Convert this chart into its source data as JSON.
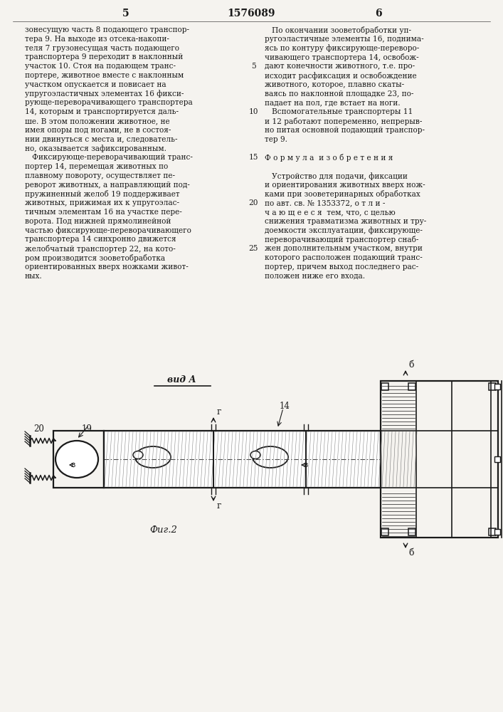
{
  "page_number_left": "5",
  "patent_number": "1576089",
  "page_number_right": "6",
  "bg_color": "#f5f3ef",
  "text_color": "#1a1a1a",
  "left_column_text": [
    "зонесущую часть 8 подающего транспор-",
    "тера 9. На выходе из отсека-накопи-",
    "теля 7 грузонесущая часть подающего",
    "транспортера 9 переходит в наклонный",
    "участок 10. Стоя на подающем транс-",
    "портере, животное вместе с наклонным",
    "участком опускается и повисает на",
    "упругоэластичных элементах 16 фикси-",
    "рующе-переворачивающего транспортера",
    "14, которым и транспортируется даль-",
    "ше. В этом положении животное, не",
    "имея опоры под ногами, не в состоя-",
    "нии двинуться с места и, следователь-",
    "но, оказывается зафиксированным.",
    "   Фиксирующе-переворачивающий транс-",
    "портер 14, перемещая животных по",
    "плавному повороту, осуществляет пе-",
    "реворот животных, а направляющий под-",
    "пружиненный желоб 19 поддерживает",
    "животных, прижимая их к упругоэлас-",
    "тичным элементам 16 на участке пере-",
    "ворота. Под нижней прямолинейной",
    "частью фиксирующе-переворачивающего",
    "транспортера 14 синхронно движется",
    "желобчатый транспортер 22, на кото-",
    "ром производится зооветобработка",
    "ориентированных вверх ножками живот-",
    "ных."
  ],
  "right_column_text": [
    "   По окончании зооветобработки уп-",
    "ругоэластичные элементы 16, поднима-",
    "ясь по контуру фиксирующе-переворо-",
    "чивающего транспортера 14, освобож-",
    "дают конечности животного, т.е. про-",
    "исходит расфиксация и освобождение",
    "животного, которое, плавно скаты-",
    "ваясь по наклонной площадке 23, по-",
    "падает на пол, где встает на ноги.",
    "   Вспомогательные транспортеры 11",
    "и 12 работают попеременно, непрерыв-",
    "но питая основной подающий транспор-",
    "тер 9.",
    "",
    "Ф о р м у л а  и з о б р е т е н и я",
    "",
    "   Устройство для подачи, фиксации",
    "и ориентирования животных вверх нож-",
    "ками при зооветеринарных обработках",
    "по авт. св. № 1353372, о т л и -",
    "ч а ю щ е е с я  тем, что, с целью",
    "снижения травматизма животных и тру-",
    "доемкости эксплуатации, фиксирующе-",
    "переворачивающий транспортер снаб-",
    "жен дополнительным участком, внутри",
    "которого расположен подающий транс-",
    "портер, причем выход последнего рас-",
    "положен ниже его входа."
  ],
  "fig_label": "Фиг.2",
  "view_label": "вид А",
  "lbl_20": "20",
  "lbl_19": "19",
  "lbl_14": "14",
  "lbl_v": "в",
  "lbl_g": "г",
  "lbl_b": "б"
}
